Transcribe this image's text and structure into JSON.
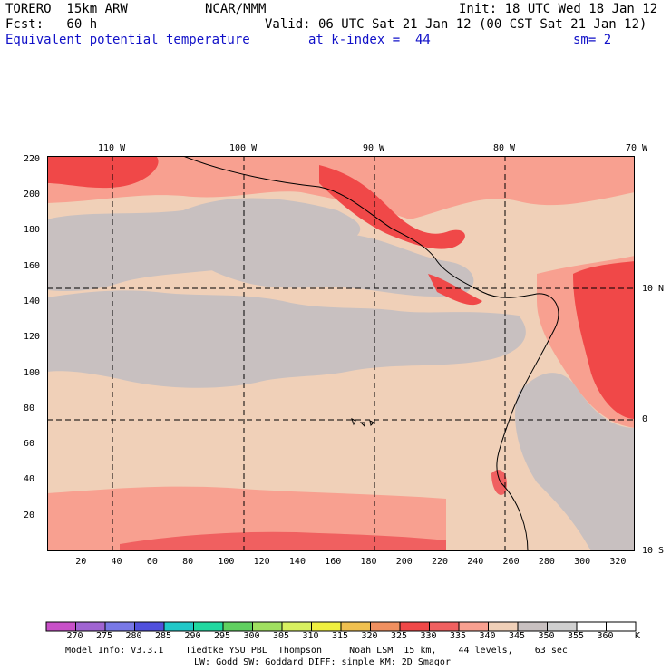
{
  "header": {
    "model": "TORERO  15km ARW",
    "org": "NCAR/MMM",
    "init": "Init: 18 UTC Wed 18 Jan 12",
    "fcst": "Fcst:   60 h",
    "valid": "Valid: 06 UTC Sat 21 Jan 12 (00 CST Sat 21 Jan 12)",
    "field": "Equivalent potential temperature",
    "level": "at k-index =  44",
    "smooth": "sm= 2"
  },
  "map": {
    "lon_labels": [
      "110 W",
      "100 W",
      "90 W",
      "80 W",
      "70 W"
    ],
    "lat_labels": [
      "10 N",
      "0",
      "10 S"
    ],
    "y_grid_labels": [
      "220",
      "200",
      "180",
      "160",
      "140",
      "120",
      "100",
      "80",
      "60",
      "40",
      "20"
    ],
    "x_grid_labels": [
      "20",
      "40",
      "60",
      "80",
      "100",
      "120",
      "140",
      "160",
      "180",
      "200",
      "220",
      "240",
      "260",
      "280",
      "300",
      "320"
    ],
    "grid_x_extent": [
      0,
      330
    ],
    "grid_y_extent": [
      0,
      222
    ]
  },
  "colorbar": {
    "labels": [
      "270",
      "275",
      "280",
      "285",
      "290",
      "295",
      "300",
      "305",
      "310",
      "315",
      "320",
      "325",
      "330",
      "335",
      "340",
      "345",
      "350",
      "355",
      "360"
    ],
    "unit": "K",
    "colors": [
      "#c850c8",
      "#a064d2",
      "#7878e6",
      "#5050dc",
      "#20c8c8",
      "#20d8a0",
      "#60d060",
      "#a0e060",
      "#d8f060",
      "#f0f040",
      "#f0c050",
      "#f09060",
      "#f04848",
      "#f06060",
      "#f8a090",
      "#f0d0b8",
      "#c8c0c0",
      "#d0d0d0",
      "#ffffff"
    ]
  },
  "footer": {
    "line1": "Model Info: V3.3.1    Tiedtke YSU PBL  Thompson     Noah LSM  15 km,    44 levels,    63 sec",
    "line2": "LW: Godd SW: Goddard DIFF: simple KM: 2D Smagor"
  }
}
